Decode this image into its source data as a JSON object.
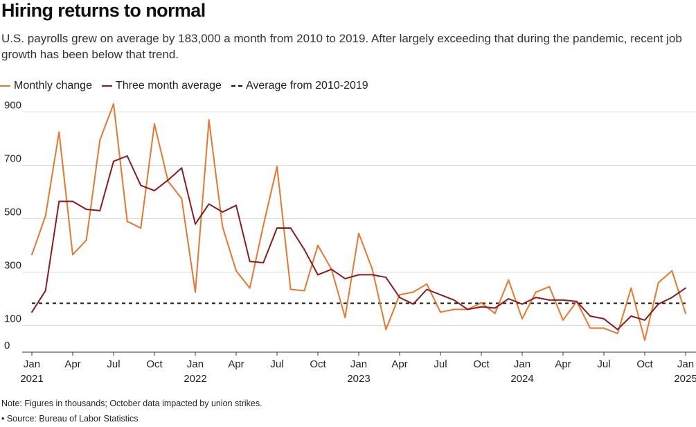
{
  "title": "Hiring returns to normal",
  "subtitle": "U.S. payrolls grew on average by 183,000 a month from 2010 to 2019. After largely exceeding that during the pandemic, recent job growth has been below that trend.",
  "legend": {
    "monthly": "Monthly change",
    "avg": "Three month average",
    "baseline": "Average from 2010-2019"
  },
  "colors": {
    "monthly": "#e8762d",
    "avg": "#8b1a1a",
    "baseline": "#111111",
    "grid": "#d9d9d9"
  },
  "note": "Note: Figures in thousands; October data impacted by union strikes.",
  "source": "• Source: Bureau of Labor Statistics",
  "chart_data": {
    "type": "line",
    "ylim": [
      0,
      950
    ],
    "yticks": [
      0,
      100,
      300,
      500,
      700,
      900
    ],
    "grid": true,
    "legend_position": "top-left",
    "x_labels": [
      {
        "i": 0,
        "month": "Jan",
        "year": "2021"
      },
      {
        "i": 3,
        "month": "Apr",
        "year": ""
      },
      {
        "i": 6,
        "month": "Jul",
        "year": ""
      },
      {
        "i": 9,
        "month": "Oct",
        "year": ""
      },
      {
        "i": 12,
        "month": "Jan",
        "year": "2022"
      },
      {
        "i": 15,
        "month": "Apr",
        "year": ""
      },
      {
        "i": 18,
        "month": "Jul",
        "year": ""
      },
      {
        "i": 21,
        "month": "Oct",
        "year": ""
      },
      {
        "i": 24,
        "month": "Jan",
        "year": "2023"
      },
      {
        "i": 27,
        "month": "Apr",
        "year": ""
      },
      {
        "i": 30,
        "month": "Jul",
        "year": ""
      },
      {
        "i": 33,
        "month": "Oct",
        "year": ""
      },
      {
        "i": 36,
        "month": "Jan",
        "year": "2024"
      },
      {
        "i": 39,
        "month": "Apr",
        "year": ""
      },
      {
        "i": 42,
        "month": "Jul",
        "year": ""
      },
      {
        "i": 45,
        "month": "Oct",
        "year": ""
      },
      {
        "i": 48,
        "month": "Jan",
        "year": "2025"
      }
    ],
    "x": [
      "2021-01",
      "2021-02",
      "2021-03",
      "2021-04",
      "2021-05",
      "2021-06",
      "2021-07",
      "2021-08",
      "2021-09",
      "2021-10",
      "2021-11",
      "2021-12",
      "2022-01",
      "2022-02",
      "2022-03",
      "2022-04",
      "2022-05",
      "2022-06",
      "2022-07",
      "2022-08",
      "2022-09",
      "2022-10",
      "2022-11",
      "2022-12",
      "2023-01",
      "2023-02",
      "2023-03",
      "2023-04",
      "2023-05",
      "2023-06",
      "2023-07",
      "2023-08",
      "2023-09",
      "2023-10",
      "2023-11",
      "2023-12",
      "2024-01",
      "2024-02",
      "2024-03",
      "2024-04",
      "2024-05",
      "2024-06",
      "2024-07",
      "2024-08",
      "2024-09",
      "2024-10",
      "2024-11",
      "2024-12",
      "2025-01"
    ],
    "series": [
      {
        "name": "Monthly change",
        "values": [
          365,
          510,
          825,
          365,
          420,
          795,
          930,
          490,
          465,
          855,
          640,
          575,
          225,
          870,
          470,
          305,
          240,
          475,
          695,
          235,
          230,
          400,
          310,
          130,
          445,
          310,
          85,
          215,
          225,
          255,
          150,
          160,
          160,
          185,
          145,
          270,
          125,
          225,
          245,
          120,
          190,
          90,
          90,
          70,
          240,
          45,
          260,
          305,
          145
        ]
      },
      {
        "name": "Three month average",
        "values": [
          150,
          230,
          565,
          565,
          535,
          530,
          715,
          735,
          625,
          605,
          645,
          690,
          480,
          555,
          525,
          550,
          340,
          335,
          465,
          465,
          385,
          290,
          310,
          275,
          290,
          290,
          280,
          205,
          180,
          235,
          215,
          195,
          160,
          170,
          165,
          200,
          180,
          205,
          195,
          195,
          190,
          135,
          125,
          85,
          135,
          120,
          180,
          205,
          240
        ]
      }
    ],
    "baseline": {
      "name": "Average from 2010-2019",
      "value": 183
    }
  }
}
